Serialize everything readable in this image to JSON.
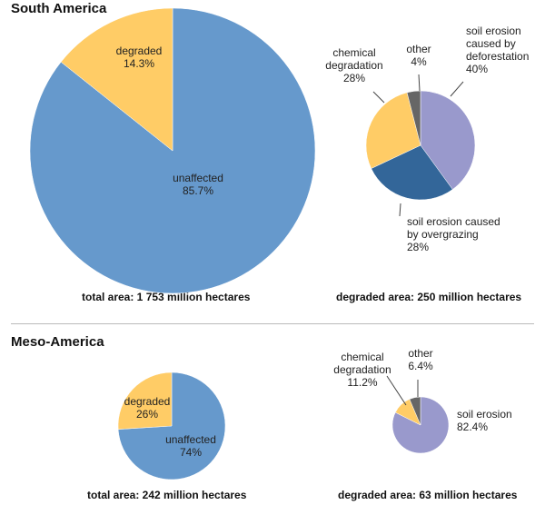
{
  "sections": [
    {
      "title": "South America",
      "total_caption": "total area: 1 753 million hectares",
      "degraded_caption": "degraded area: 250 million hectares"
    },
    {
      "title": "Meso-America",
      "total_caption": "total area: 242 million hectares",
      "degraded_caption": "degraded area: 63 million hectares"
    }
  ],
  "chart_data": [
    {
      "type": "pie",
      "title": "South America",
      "caption": "total area: 1 753 million hectares",
      "slices": [
        {
          "label": "unaffected",
          "value": 85.7,
          "value_label": "85.7%",
          "color": "#6699cc"
        },
        {
          "label": "degraded",
          "value": 14.3,
          "value_label": "14.3%",
          "color": "#ffcc66"
        }
      ]
    },
    {
      "type": "pie",
      "title": "South America",
      "caption": "degraded area: 250 million hectares",
      "slices": [
        {
          "label": "soil erosion caused by deforestation",
          "value": 40,
          "value_label": "40%",
          "color": "#9999cc"
        },
        {
          "label": "soil erosion caused by overgrazing",
          "value": 28,
          "value_label": "28%",
          "color": "#336699"
        },
        {
          "label": "chemical degradation",
          "value": 28,
          "value_label": "28%",
          "color": "#ffcc66"
        },
        {
          "label": "other",
          "value": 4,
          "value_label": "4%",
          "color": "#666666"
        }
      ]
    },
    {
      "type": "pie",
      "title": "Meso-America",
      "caption": "total area: 242 million hectares",
      "slices": [
        {
          "label": "unaffected",
          "value": 74,
          "value_label": "74%",
          "color": "#6699cc"
        },
        {
          "label": "degraded",
          "value": 26,
          "value_label": "26%",
          "color": "#ffcc66"
        }
      ]
    },
    {
      "type": "pie",
      "title": "Meso-America",
      "caption": "degraded area: 63 million hectares",
      "slices": [
        {
          "label": "soil erosion",
          "value": 82.4,
          "value_label": "82.4%",
          "color": "#9999cc"
        },
        {
          "label": "chemical degradation",
          "value": 11.2,
          "value_label": "11.2%",
          "color": "#ffcc66"
        },
        {
          "label": "other",
          "value": 6.4,
          "value_label": "6.4%",
          "color": "#666666"
        }
      ]
    }
  ]
}
